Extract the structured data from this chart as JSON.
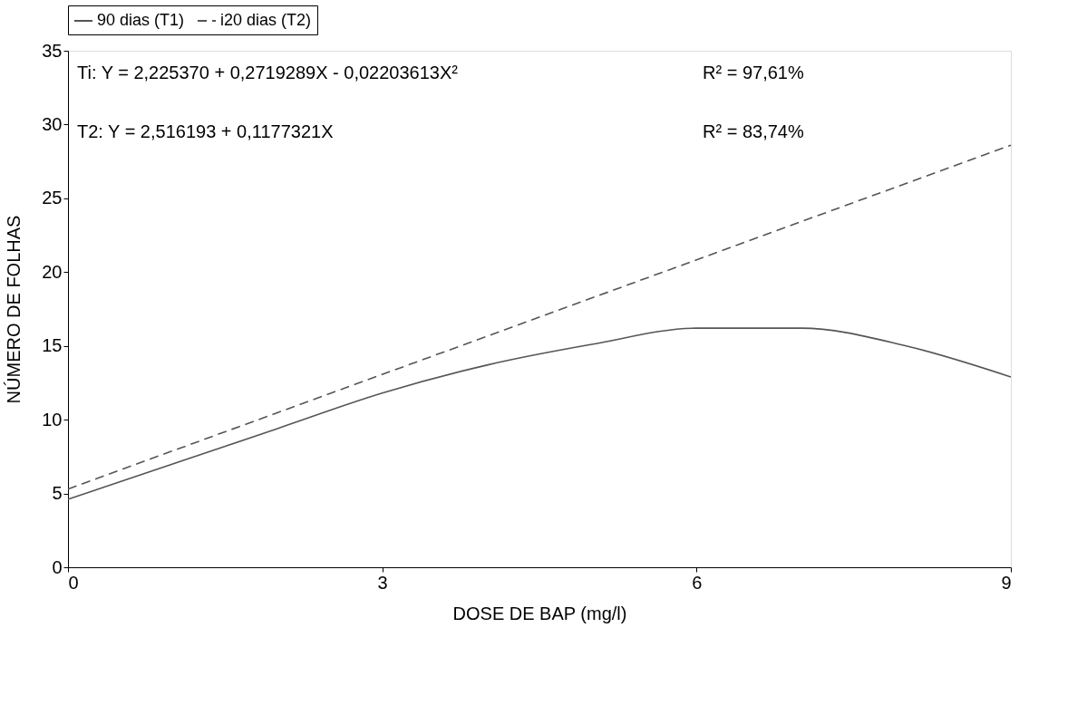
{
  "chart_data": {
    "type": "line",
    "xlabel": "DOSE DE BAP (mg/l)",
    "ylabel": "NÚMERO DE FOLHAS",
    "x": [
      0,
      1,
      2,
      3,
      4,
      5,
      6,
      7,
      8,
      9
    ],
    "series": [
      {
        "name": "90 dias (T1)",
        "color": "#555555",
        "line_style": "solid",
        "values": [
          4.6,
          7.0,
          9.4,
          11.8,
          13.7,
          15.1,
          16.2,
          16.2,
          15.0,
          12.9
        ]
      },
      {
        "name": "i20 dias (T2)",
        "color": "#555555",
        "line_style": "dashed",
        "x": [
          0,
          9
        ],
        "values": [
          5.3,
          28.6
        ]
      }
    ],
    "xlim": [
      0,
      9
    ],
    "xticks": [
      0,
      3,
      6,
      9
    ],
    "ylim": [
      0,
      35
    ],
    "yticks": [
      0,
      5,
      10,
      15,
      20,
      25,
      30,
      35
    ],
    "grid": false,
    "legend": "top",
    "marker": "none",
    "annotations": [
      "Ti: Y = 2,225370 + 0,2719289X - 0,02203613X²",
      "R² = 97,61%",
      "T2: Y = 2,516193 + 0,1177321X",
      "R² = 83,74%"
    ]
  }
}
